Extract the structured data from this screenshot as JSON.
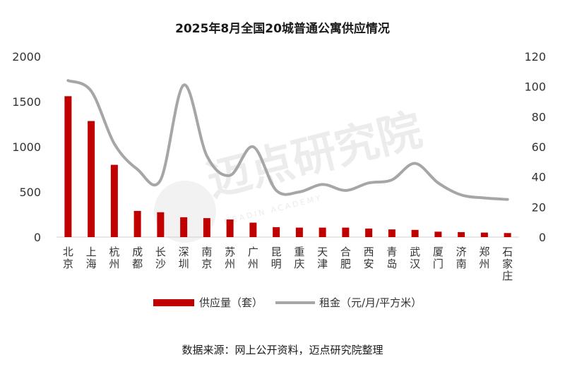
{
  "chart_data": {
    "type": "bar",
    "title": "2025年8月全国20城普通公寓供应情况",
    "categories": [
      "北京",
      "上海",
      "杭州",
      "成都",
      "长沙",
      "深圳",
      "南京",
      "苏州",
      "广州",
      "昆明",
      "重庆",
      "天津",
      "合肥",
      "西安",
      "青岛",
      "武汉",
      "厦门",
      "济南",
      "郑州",
      "石家庄"
    ],
    "series": [
      {
        "name": "供应量（套）",
        "type": "bar",
        "axis": "left",
        "color": "#c00000",
        "values": [
          1560,
          1285,
          800,
          290,
          275,
          220,
          210,
          195,
          160,
          110,
          105,
          105,
          105,
          95,
          85,
          80,
          60,
          55,
          50,
          45
        ]
      },
      {
        "name": "租金（元/月/平方米）",
        "type": "line",
        "axis": "right",
        "color": "#a6a6a6",
        "values": [
          104,
          97,
          62,
          45,
          38,
          101,
          54,
          41,
          60,
          31,
          30,
          35,
          31,
          36,
          38,
          49,
          36,
          28,
          26,
          25
        ]
      }
    ],
    "y_left": {
      "min": 0,
      "max": 2000,
      "ticks": [
        0,
        500,
        1000,
        1500,
        2000
      ]
    },
    "y_right": {
      "min": 0,
      "max": 120,
      "ticks": [
        0,
        20,
        40,
        60,
        80,
        100,
        120
      ]
    },
    "grid": false,
    "legend_position": "bottom"
  },
  "source_note": "数据来源：网上公开资料，迈点研究院整理",
  "watermark": {
    "text": "迈点研究院",
    "subtext": "MEADIN ACADEMY"
  }
}
